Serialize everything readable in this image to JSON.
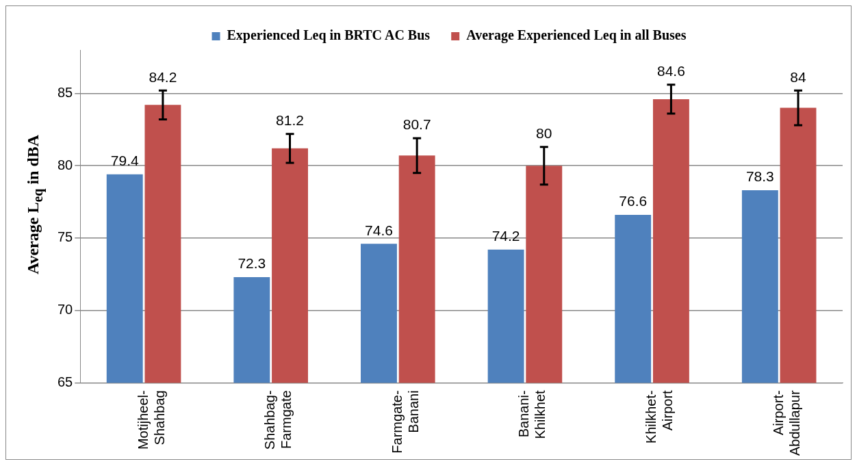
{
  "chart_data": {
    "type": "bar",
    "ylabel": "Average L$_{eq}$ in dBA",
    "categories": [
      "Motijheel-Shahbag",
      "Shahbag-Farmgate",
      "Farmgate-Banani",
      "Banani-Khilkhet",
      "Khilkhet-Airport",
      "Airport-Abdullapur"
    ],
    "series": [
      {
        "name": "Experienced Leq in BRTC AC Bus",
        "color": "#4f81bd",
        "values": [
          79.4,
          72.3,
          74.6,
          74.2,
          76.6,
          78.3
        ]
      },
      {
        "name": "Average Experienced Leq in all Buses",
        "color": "#c0504d",
        "values": [
          84.2,
          81.2,
          80.7,
          80,
          84.6,
          84
        ],
        "errors": [
          1.0,
          1.0,
          1.2,
          1.3,
          1.0,
          1.2
        ]
      }
    ],
    "ylim": [
      65,
      88
    ],
    "yticks": [
      65,
      70,
      75,
      80,
      85
    ],
    "grid": "y",
    "legend": "top",
    "data_labels": true
  }
}
